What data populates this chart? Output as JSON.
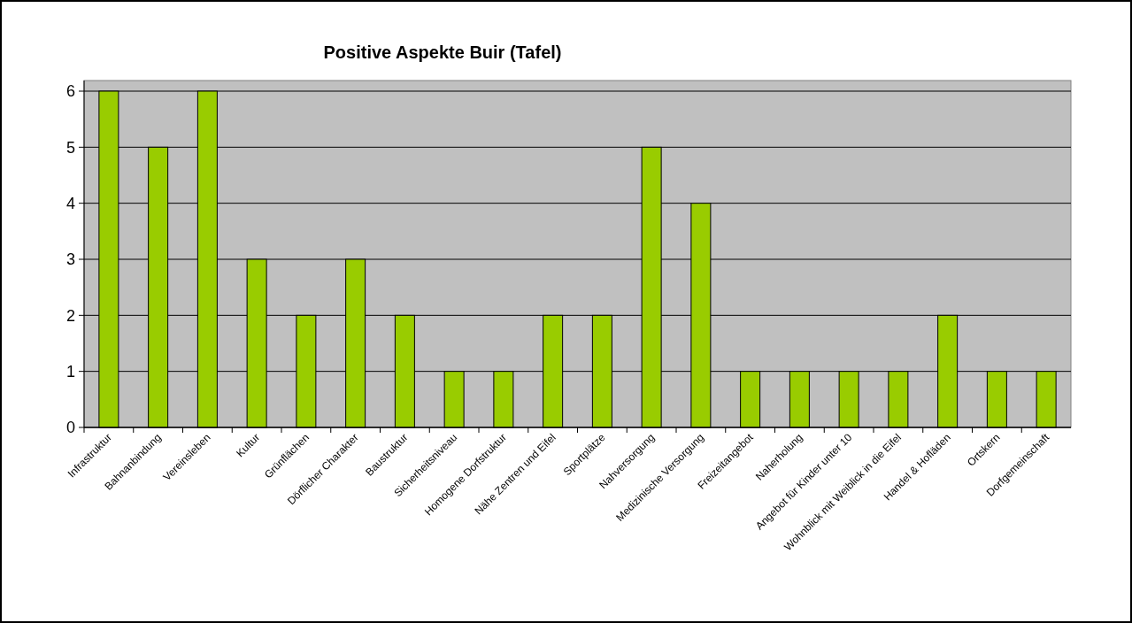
{
  "chart_data": {
    "type": "bar",
    "title": "Positive Aspekte Buir (Tafel)",
    "categories": [
      "Infrastruktur",
      "Bahnanbindung",
      "Vereinsleben",
      "Kultur",
      "Grünflächen",
      "Dörflicher Charakter",
      "Baustruktur",
      "Sicherheitsniveau",
      "Homogene Dorfstruktur",
      "Nähe Zentren und Eifel",
      "Sportplätze",
      "Nahversorgung",
      "Medizinische Versorgung",
      "Freizeitangebot",
      "Naherholung",
      "Angebot für Kinder unter 10",
      "Wohnblick mit Weiblick in die Eifel",
      "Handel & Hofläden",
      "Ortskern",
      "Dorfgemeinschaft"
    ],
    "values": [
      6,
      5,
      6,
      3,
      2,
      3,
      2,
      1,
      1,
      2,
      2,
      5,
      4,
      1,
      1,
      1,
      1,
      2,
      1,
      1
    ],
    "color": "#99cc00",
    "ylim": [
      0,
      6
    ],
    "yticks": [
      0,
      1,
      2,
      3,
      4,
      5,
      6
    ],
    "grid": "y"
  }
}
